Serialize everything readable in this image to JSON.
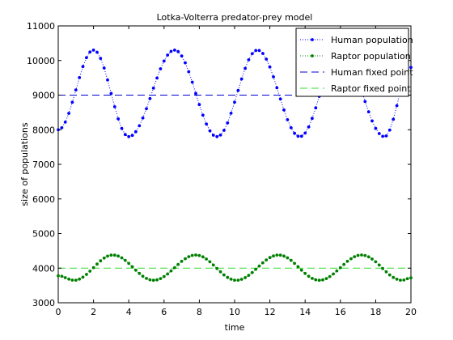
{
  "chart_data": {
    "type": "line",
    "title": "Lotka-Volterra predator-prey model",
    "xlabel": "time",
    "ylabel": "size of populations",
    "xlim": [
      0,
      20
    ],
    "ylim": [
      3000,
      11000
    ],
    "xticks": [
      0,
      2,
      4,
      6,
      8,
      10,
      12,
      14,
      16,
      18,
      20
    ],
    "yticks": [
      3000,
      4000,
      5000,
      6000,
      7000,
      8000,
      9000,
      10000,
      11000
    ],
    "grid": false,
    "legend_position": "top-right",
    "series": [
      {
        "name": "Human population",
        "style": "dotted-line-with-point-markers",
        "color": "#0000ff",
        "sample_step": 0.2,
        "model": {
          "form": "sinusoid",
          "mean": 9050,
          "amplitude": 1250,
          "period": 4.75,
          "phase_offset": 0.8,
          "note_values": "estimated from plotted curve"
        },
        "x_start": 0,
        "x_end": 20,
        "key_points": [
          {
            "x": 0,
            "y": 8000
          },
          {
            "x": 2,
            "y": 10300
          },
          {
            "x": 4,
            "y": 7800
          },
          {
            "x": 6.6,
            "y": 10300
          },
          {
            "x": 9,
            "y": 7800
          },
          {
            "x": 11.3,
            "y": 10300
          },
          {
            "x": 13.7,
            "y": 7800
          },
          {
            "x": 16,
            "y": 10300
          },
          {
            "x": 18.5,
            "y": 7800
          },
          {
            "x": 20,
            "y": 9800
          }
        ]
      },
      {
        "name": "Raptor population",
        "style": "dotted-line-with-point-markers",
        "color": "#008000",
        "key_points": [
          {
            "x": 0,
            "y": 3780
          },
          {
            "x": 0.9,
            "y": 3650
          },
          {
            "x": 3.1,
            "y": 4380
          },
          {
            "x": 5.4,
            "y": 3650
          },
          {
            "x": 7.8,
            "y": 4380
          },
          {
            "x": 10.1,
            "y": 3650
          },
          {
            "x": 12.5,
            "y": 4380
          },
          {
            "x": 14.8,
            "y": 3650
          },
          {
            "x": 17.2,
            "y": 4380
          },
          {
            "x": 19.5,
            "y": 3650
          },
          {
            "x": 20,
            "y": 3720
          }
        ]
      },
      {
        "name": "Human fixed point",
        "style": "dashed-line",
        "color": "#0000cc",
        "value": 9000
      },
      {
        "name": "Raptor fixed point",
        "style": "dashed-line",
        "color": "#33dd33",
        "value": 4000
      }
    ]
  }
}
